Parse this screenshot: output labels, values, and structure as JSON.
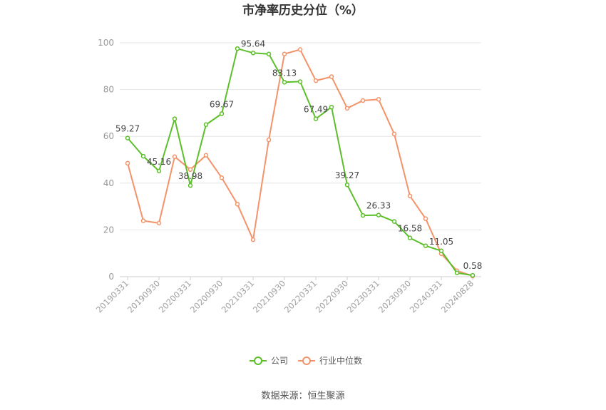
{
  "chart_data": {
    "type": "line",
    "title": "市净率历史分位（%）",
    "xlabel": "",
    "ylabel": "",
    "ylim": [
      0,
      100
    ],
    "yticks": [
      0,
      20,
      40,
      60,
      80,
      100
    ],
    "grid": true,
    "legend_position": "bottom",
    "x": [
      "20190331",
      "20190630",
      "20190930",
      "20191231",
      "20200331",
      "20200630",
      "20200930",
      "20201231",
      "20210331",
      "20210630",
      "20210930",
      "20211231",
      "20220331",
      "20220630",
      "20220930",
      "20221231",
      "20230331",
      "20230630",
      "20230930",
      "20231231",
      "20240331",
      "20240630",
      "20240828"
    ],
    "x_tick_labels": [
      "20190331",
      "20190930",
      "20200331",
      "20200930",
      "20210331",
      "20210930",
      "20220331",
      "20220930",
      "20230331",
      "20230930",
      "20240331",
      "20240828"
    ],
    "series": [
      {
        "name": "公司",
        "color": "#5cbf2a",
        "values": [
          59.27,
          51.5,
          45.16,
          67.5,
          38.98,
          65.0,
          69.67,
          97.5,
          95.64,
          95.2,
          83.13,
          83.4,
          67.49,
          72.5,
          39.27,
          26.2,
          26.33,
          23.6,
          16.58,
          13.2,
          11.05,
          1.6,
          0.58
        ],
        "labels": {
          "0": "59.27",
          "2": "45.16",
          "4": "38.98",
          "6": "69.67",
          "8": "95.64",
          "10": "83.13",
          "12": "67.49",
          "14": "39.27",
          "16": "26.33",
          "18": "16.58",
          "20": "11.05",
          "22": "0.58"
        }
      },
      {
        "name": "行业中位数",
        "color": "#f4936a",
        "values": [
          48.5,
          23.9,
          22.9,
          51.3,
          45.8,
          51.9,
          42.3,
          31.0,
          15.8,
          58.5,
          95.2,
          97.1,
          83.8,
          85.5,
          72.0,
          75.3,
          75.8,
          61.0,
          34.5,
          24.8,
          9.8,
          2.5,
          0.3
        ]
      }
    ]
  },
  "source": "数据来源：恒生聚源"
}
